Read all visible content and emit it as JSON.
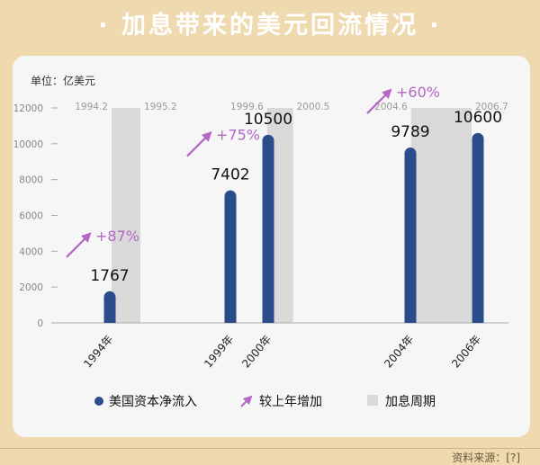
{
  "title": "· 加息带来的美元回流情况 ·",
  "footer": "资料来源：[?]",
  "colors": {
    "bar": "#2b4c8a",
    "arrow": "#b268c4",
    "period": "#d9d9d9",
    "background": "#efd9ae",
    "card": "#f6f6f6"
  },
  "chart_data": {
    "type": "bar",
    "unit_label": "单位：亿美元",
    "categories": [
      "1994年",
      "1999年",
      "2000年",
      "2004年",
      "2006年"
    ],
    "series": [
      {
        "name": "美国资本净流入",
        "values": [
          1767,
          7402,
          10500,
          9789,
          10600
        ]
      }
    ],
    "value_labels": [
      "1767",
      "7402",
      "10500",
      "9789",
      "10600"
    ],
    "ylim": [
      0,
      12000
    ],
    "yticks": [
      0,
      2000,
      4000,
      6000,
      8000,
      10000,
      12000
    ],
    "ytick_labels": [
      "0",
      "2000",
      "4000",
      "6000",
      "8000",
      "10000",
      "12000"
    ],
    "hike_periods": [
      {
        "start": 1994.2,
        "end": 1995.2,
        "start_label": "1994.2",
        "end_label": "1995.2"
      },
      {
        "start": 1999.6,
        "end": 2000.5,
        "start_label": "1999.6",
        "end_label": "2000.5"
      },
      {
        "start": 2004.6,
        "end": 2006.7,
        "start_label": "2004.6",
        "end_label": "2006.7"
      }
    ],
    "growth_annotations": [
      {
        "category": "1994年",
        "text": "+87%"
      },
      {
        "category": "1999年",
        "text": "+75%"
      },
      {
        "category": "2004年",
        "text": "+60%"
      }
    ],
    "legend": [
      {
        "key": "bar",
        "label": "美国资本净流入"
      },
      {
        "key": "arrow",
        "label": "较上年增加"
      },
      {
        "key": "period",
        "label": "加息周期"
      }
    ],
    "grid": false
  }
}
